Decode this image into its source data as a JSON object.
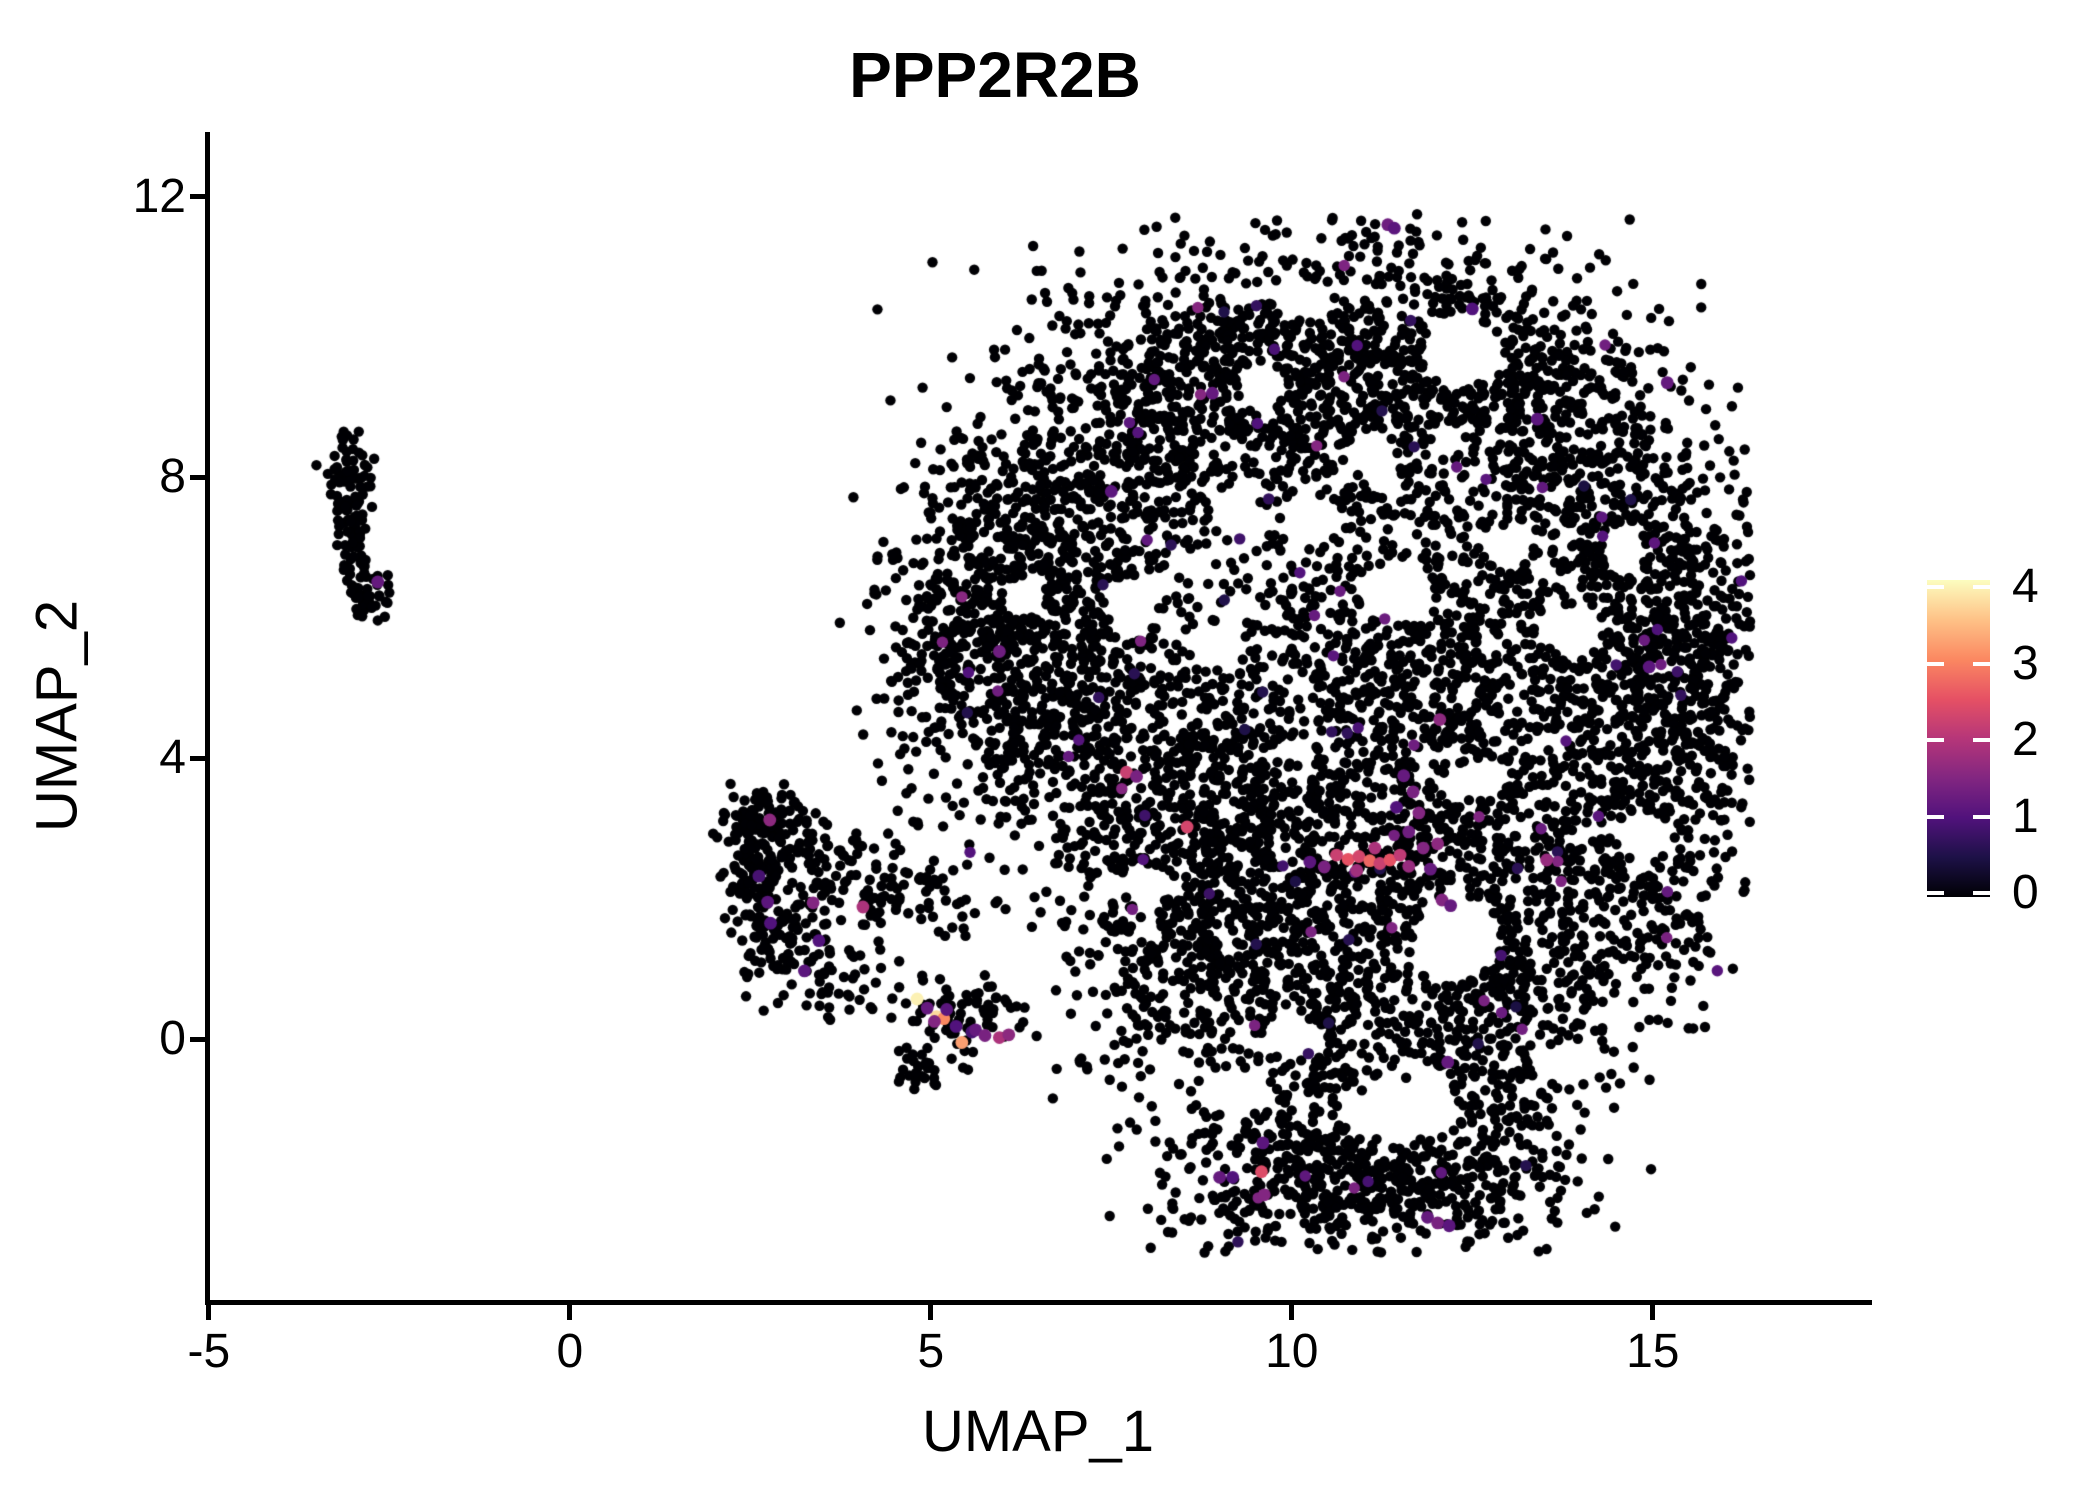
{
  "title": "PPP2R2B",
  "axes": {
    "x": {
      "label": "UMAP_1",
      "ticks": [
        -5,
        0,
        5,
        10,
        15
      ]
    },
    "y": {
      "label": "UMAP_2",
      "ticks": [
        0,
        4,
        8,
        12
      ]
    }
  },
  "chart_data": {
    "type": "scatter",
    "title": "PPP2R2B",
    "xlabel": "UMAP_1",
    "ylabel": "UMAP_2",
    "xlim": [
      -5.05,
      18.03
    ],
    "ylim": [
      -3.72,
      12.92
    ],
    "x_ticks": [
      -5,
      0,
      5,
      10,
      15
    ],
    "y_ticks": [
      0,
      4,
      8,
      12
    ],
    "grid": false,
    "legend_position": "right",
    "point_color_meaning": "PPP2R2B expression level",
    "colorbar": {
      "ticks": [
        0,
        1,
        2,
        3,
        4
      ],
      "domain": [
        0,
        4
      ],
      "colormap": "magma",
      "stops": [
        [
          0.0,
          "#000004"
        ],
        [
          0.125,
          "#1d1147"
        ],
        [
          0.25,
          "#51127c"
        ],
        [
          0.375,
          "#822681"
        ],
        [
          0.5,
          "#b63679"
        ],
        [
          0.625,
          "#e65164"
        ],
        [
          0.75,
          "#fb8861"
        ],
        [
          0.875,
          "#fec287"
        ],
        [
          1.0,
          "#fcfdbf"
        ]
      ]
    },
    "seed": 42,
    "point_radius_px": 5.2,
    "highlight_radius_px": 6.4,
    "sparse_colored_fraction": 0.013,
    "sparse_v_range": [
      0.45,
      1.55
    ],
    "clip": {
      "xmin": -5.0,
      "xmax": 16.35,
      "ymin": -3.05,
      "ymax": 11.75
    },
    "background_clusters": [
      {
        "name": "left-islet-top",
        "cx": -3.05,
        "cy": 7.9,
        "sx": 0.14,
        "sy": 0.45,
        "n": 80,
        "blob": false
      },
      {
        "name": "left-islet-mid",
        "cx": -2.98,
        "cy": 7.15,
        "sx": 0.1,
        "sy": 0.3,
        "n": 30,
        "blob": false
      },
      {
        "name": "left-islet-low",
        "cx": -2.8,
        "cy": 6.35,
        "sx": 0.15,
        "sy": 0.2,
        "n": 45,
        "blob": false
      },
      {
        "name": "hook-top",
        "cx": 2.62,
        "cy": 3.15,
        "sx": 0.28,
        "sy": 0.22,
        "n": 90,
        "blob": false
      },
      {
        "name": "hook-mid",
        "cx": 2.6,
        "cy": 2.45,
        "sx": 0.2,
        "sy": 0.35,
        "n": 85,
        "blob": false
      },
      {
        "name": "hook-low",
        "cx": 2.95,
        "cy": 1.5,
        "sx": 0.33,
        "sy": 0.35,
        "n": 110,
        "blob": false
      },
      {
        "name": "hook-inner",
        "cx": 3.35,
        "cy": 2.65,
        "sx": 0.4,
        "sy": 0.3,
        "n": 60,
        "blob": false
      },
      {
        "name": "hook-arm",
        "cx": 4.15,
        "cy": 2.2,
        "sx": 0.5,
        "sy": 0.32,
        "n": 55,
        "blob": false
      },
      {
        "name": "hook-arm-tip",
        "cx": 4.9,
        "cy": 1.8,
        "sx": 0.45,
        "sy": 0.28,
        "n": 30,
        "blob": false
      },
      {
        "name": "hook-trail",
        "cx": 3.9,
        "cy": 0.75,
        "sx": 0.5,
        "sy": 0.28,
        "n": 40,
        "blob": false
      },
      {
        "name": "bright-clump",
        "cx": 5.35,
        "cy": 0.28,
        "sx": 0.42,
        "sy": 0.26,
        "n": 70,
        "blob": false
      },
      {
        "name": "x-clump",
        "cx": 4.78,
        "cy": -0.5,
        "sx": 0.16,
        "sy": 0.16,
        "n": 26,
        "blob": false
      },
      {
        "name": "stray-mid",
        "cx": 5.2,
        "cy": 3.1,
        "sx": 0.8,
        "sy": 0.7,
        "n": 25,
        "blob": false
      },
      {
        "name": "blob-left-wedge",
        "cx": 5.6,
        "cy": 5.7,
        "sx": 0.8,
        "sy": 0.95,
        "n": 420,
        "blob": true
      },
      {
        "name": "blob-upleft",
        "cx": 6.7,
        "cy": 7.3,
        "sx": 0.95,
        "sy": 1.05,
        "n": 420,
        "blob": true
      },
      {
        "name": "blob-top-left",
        "cx": 8.3,
        "cy": 8.9,
        "sx": 1.15,
        "sy": 1.15,
        "n": 520,
        "blob": true
      },
      {
        "name": "blob-top",
        "cx": 10.4,
        "cy": 9.6,
        "sx": 1.25,
        "sy": 0.95,
        "n": 580,
        "blob": true
      },
      {
        "name": "blob-top-right",
        "cx": 12.4,
        "cy": 9.3,
        "sx": 1.15,
        "sy": 1.05,
        "n": 540,
        "blob": true
      },
      {
        "name": "blob-right-up",
        "cx": 14.1,
        "cy": 7.9,
        "sx": 1.05,
        "sy": 1.15,
        "n": 450,
        "blob": true
      },
      {
        "name": "blob-right-edge",
        "cx": 15.2,
        "cy": 6.0,
        "sx": 0.75,
        "sy": 1.05,
        "n": 330,
        "blob": true
      },
      {
        "name": "blob-left-mid",
        "cx": 7.0,
        "cy": 4.9,
        "sx": 0.95,
        "sy": 1.15,
        "n": 450,
        "blob": true
      },
      {
        "name": "blob-left-low",
        "cx": 8.7,
        "cy": 3.4,
        "sx": 1.05,
        "sy": 1.25,
        "n": 500,
        "blob": true
      },
      {
        "name": "blob-center",
        "cx": 10.8,
        "cy": 5.6,
        "sx": 1.25,
        "sy": 1.35,
        "n": 500,
        "blob": true
      },
      {
        "name": "blob-center-right",
        "cx": 12.9,
        "cy": 5.3,
        "sx": 1.15,
        "sy": 1.25,
        "n": 500,
        "blob": true
      },
      {
        "name": "blob-right-mid",
        "cx": 14.6,
        "cy": 3.9,
        "sx": 0.95,
        "sy": 1.15,
        "n": 400,
        "blob": true
      },
      {
        "name": "blob-band",
        "cx": 10.6,
        "cy": 2.6,
        "sx": 1.15,
        "sy": 0.95,
        "n": 430,
        "blob": true
      },
      {
        "name": "blob-band-right",
        "cx": 12.4,
        "cy": 2.2,
        "sx": 1.05,
        "sy": 0.95,
        "n": 340,
        "blob": true
      },
      {
        "name": "blob-low-left",
        "cx": 8.6,
        "cy": 1.2,
        "sx": 0.95,
        "sy": 1.05,
        "n": 340,
        "blob": true
      },
      {
        "name": "blob-low-mid",
        "cx": 10.6,
        "cy": 0.3,
        "sx": 1.25,
        "sy": 0.85,
        "n": 380,
        "blob": true
      },
      {
        "name": "blob-low-right",
        "cx": 13.0,
        "cy": 0.6,
        "sx": 0.85,
        "sy": 0.85,
        "n": 250,
        "blob": true
      },
      {
        "name": "blob-right-bulge",
        "cx": 14.9,
        "cy": 1.9,
        "sx": 0.65,
        "sy": 0.75,
        "n": 170,
        "blob": true
      },
      {
        "name": "blob-far-right",
        "cx": 15.8,
        "cy": 4.7,
        "sx": 0.45,
        "sy": 0.85,
        "n": 110,
        "blob": true
      },
      {
        "name": "lobe-left",
        "cx": 9.9,
        "cy": -1.9,
        "sx": 0.95,
        "sy": 0.6,
        "n": 330,
        "blob": true
      },
      {
        "name": "lobe-right",
        "cx": 11.9,
        "cy": -2.1,
        "sx": 0.95,
        "sy": 0.55,
        "n": 320,
        "blob": true
      },
      {
        "name": "lobe-connector",
        "cx": 13.0,
        "cy": -1.0,
        "sx": 0.5,
        "sy": 0.55,
        "n": 110,
        "blob": true
      }
    ],
    "holes": [
      {
        "cx": 12.35,
        "cy": 9.8,
        "rx": 0.55,
        "ry": 0.5
      },
      {
        "cx": 12.3,
        "cy": 1.45,
        "rx": 0.6,
        "ry": 0.6
      },
      {
        "cx": 11.45,
        "cy": 6.4,
        "rx": 0.5,
        "ry": 0.4
      },
      {
        "cx": 9.0,
        "cy": 5.6,
        "rx": 0.38,
        "ry": 0.35
      },
      {
        "cx": 10.0,
        "cy": 0.05,
        "rx": 0.4,
        "ry": 0.3
      },
      {
        "cx": 11.5,
        "cy": -1.05,
        "rx": 0.85,
        "ry": 0.4
      },
      {
        "cx": 9.2,
        "cy": -0.75,
        "rx": 0.55,
        "ry": 0.3
      },
      {
        "cx": 13.9,
        "cy": 5.8,
        "rx": 0.4,
        "ry": 0.4
      },
      {
        "cx": 10.3,
        "cy": 7.4,
        "rx": 0.4,
        "ry": 0.35
      },
      {
        "cx": 13.0,
        "cy": 7.0,
        "rx": 0.35,
        "ry": 0.3
      },
      {
        "cx": 14.9,
        "cy": 2.9,
        "rx": 0.35,
        "ry": 0.35
      },
      {
        "cx": 7.8,
        "cy": 6.15,
        "rx": 0.35,
        "ry": 0.4
      },
      {
        "cx": 10.15,
        "cy": 10.55,
        "rx": 0.4,
        "ry": 0.3
      },
      {
        "cx": 13.8,
        "cy": -0.35,
        "rx": 0.5,
        "ry": 0.3
      },
      {
        "cx": 12.6,
        "cy": 3.7,
        "rx": 0.4,
        "ry": 0.3
      },
      {
        "cx": 9.6,
        "cy": 9.3,
        "rx": 0.35,
        "ry": 0.3
      },
      {
        "cx": 11.1,
        "cy": 8.3,
        "rx": 0.35,
        "ry": 0.3
      },
      {
        "cx": 14.6,
        "cy": 7.0,
        "rx": 0.3,
        "ry": 0.35
      },
      {
        "cx": 8.0,
        "cy": 2.2,
        "rx": 0.35,
        "ry": 0.3
      },
      {
        "cx": 6.3,
        "cy": 6.3,
        "rx": 0.3,
        "ry": 0.3
      }
    ],
    "highlight_points": [
      {
        "x": 4.81,
        "y": 0.57,
        "v": 3.9
      },
      {
        "x": 5.08,
        "y": 0.32,
        "v": 3.7
      },
      {
        "x": 5.18,
        "y": 0.29,
        "v": 3.0
      },
      {
        "x": 5.43,
        "y": -0.05,
        "v": 3.2
      },
      {
        "x": 4.95,
        "y": 0.44,
        "v": 1.2
      },
      {
        "x": 5.05,
        "y": 0.25,
        "v": 1.5
      },
      {
        "x": 5.22,
        "y": 0.42,
        "v": 1.1
      },
      {
        "x": 5.35,
        "y": 0.18,
        "v": 1.0
      },
      {
        "x": 5.57,
        "y": 0.1,
        "v": 0.9
      },
      {
        "x": 5.62,
        "y": 0.13,
        "v": 1.2
      },
      {
        "x": 5.75,
        "y": 0.05,
        "v": 1.4
      },
      {
        "x": 5.95,
        "y": 0.02,
        "v": 1.9
      },
      {
        "x": 6.08,
        "y": 0.06,
        "v": 1.6
      },
      {
        "x": 2.77,
        "y": 3.12,
        "v": 1.6
      },
      {
        "x": 2.74,
        "y": 1.95,
        "v": 1.1
      },
      {
        "x": 2.78,
        "y": 1.65,
        "v": 1.0
      },
      {
        "x": 3.37,
        "y": 1.94,
        "v": 1.5
      },
      {
        "x": 4.06,
        "y": 1.88,
        "v": 1.9
      },
      {
        "x": 3.45,
        "y": 1.4,
        "v": 1.0
      },
      {
        "x": 3.25,
        "y": 0.97,
        "v": 1.1
      },
      {
        "x": 2.62,
        "y": 2.32,
        "v": 0.9
      },
      {
        "x": -2.66,
        "y": 6.51,
        "v": 1.2
      },
      {
        "x": 10.62,
        "y": 2.62,
        "v": 2.2
      },
      {
        "x": 10.78,
        "y": 2.56,
        "v": 2.5
      },
      {
        "x": 10.93,
        "y": 2.6,
        "v": 2.3
      },
      {
        "x": 11.08,
        "y": 2.54,
        "v": 2.7
      },
      {
        "x": 11.22,
        "y": 2.5,
        "v": 2.2
      },
      {
        "x": 11.36,
        "y": 2.55,
        "v": 2.5
      },
      {
        "x": 11.5,
        "y": 2.62,
        "v": 2.1
      },
      {
        "x": 10.45,
        "y": 2.45,
        "v": 1.4
      },
      {
        "x": 10.25,
        "y": 2.52,
        "v": 1.1
      },
      {
        "x": 11.62,
        "y": 2.46,
        "v": 1.7
      },
      {
        "x": 11.15,
        "y": 2.72,
        "v": 1.9
      },
      {
        "x": 10.9,
        "y": 2.4,
        "v": 1.8
      },
      {
        "x": 11.68,
        "y": 3.52,
        "v": 1.4
      },
      {
        "x": 11.76,
        "y": 3.22,
        "v": 1.5
      },
      {
        "x": 11.62,
        "y": 2.95,
        "v": 1.3
      },
      {
        "x": 11.82,
        "y": 2.72,
        "v": 1.5
      },
      {
        "x": 11.92,
        "y": 2.42,
        "v": 1.2
      },
      {
        "x": 12.02,
        "y": 2.78,
        "v": 1.6
      },
      {
        "x": 11.55,
        "y": 3.75,
        "v": 1.2
      },
      {
        "x": 11.45,
        "y": 3.3,
        "v": 1.0
      },
      {
        "x": 12.08,
        "y": 1.98,
        "v": 1.5
      },
      {
        "x": 12.2,
        "y": 1.9,
        "v": 1.2
      },
      {
        "x": 7.71,
        "y": 3.8,
        "v": 2.2
      },
      {
        "x": 7.85,
        "y": 3.74,
        "v": 1.4
      },
      {
        "x": 8.55,
        "y": 3.02,
        "v": 2.3
      },
      {
        "x": 13.53,
        "y": 2.55,
        "v": 1.7
      },
      {
        "x": 9.58,
        "y": -1.89,
        "v": 2.4
      },
      {
        "x": 9.0,
        "y": -1.97,
        "v": 1.2
      },
      {
        "x": 9.18,
        "y": -1.97,
        "v": 1.0
      },
      {
        "x": 9.62,
        "y": -2.22,
        "v": 1.5
      },
      {
        "x": 9.6,
        "y": -1.48,
        "v": 1.1
      },
      {
        "x": 11.88,
        "y": -2.54,
        "v": 1.2
      },
      {
        "x": 12.02,
        "y": -2.62,
        "v": 1.4
      },
      {
        "x": 12.18,
        "y": -2.66,
        "v": 1.1
      },
      {
        "x": 12.16,
        "y": -0.33,
        "v": 1.2
      },
      {
        "x": 11.33,
        "y": 11.6,
        "v": 1.3
      },
      {
        "x": 11.42,
        "y": 11.55,
        "v": 1.1
      },
      {
        "x": 15.2,
        "y": 9.35,
        "v": 1.2
      },
      {
        "x": 13.4,
        "y": 8.83,
        "v": 1.1
      },
      {
        "x": 12.5,
        "y": 10.4,
        "v": 1.0
      },
      {
        "x": 8.9,
        "y": 9.2,
        "v": 1.2
      },
      {
        "x": 7.5,
        "y": 7.8,
        "v": 1.1
      },
      {
        "x": 5.95,
        "y": 5.52,
        "v": 1.3
      },
      {
        "x": 14.95,
        "y": 5.3,
        "v": 1.1
      },
      {
        "x": 12.05,
        "y": 4.55,
        "v": 1.6
      }
    ]
  }
}
